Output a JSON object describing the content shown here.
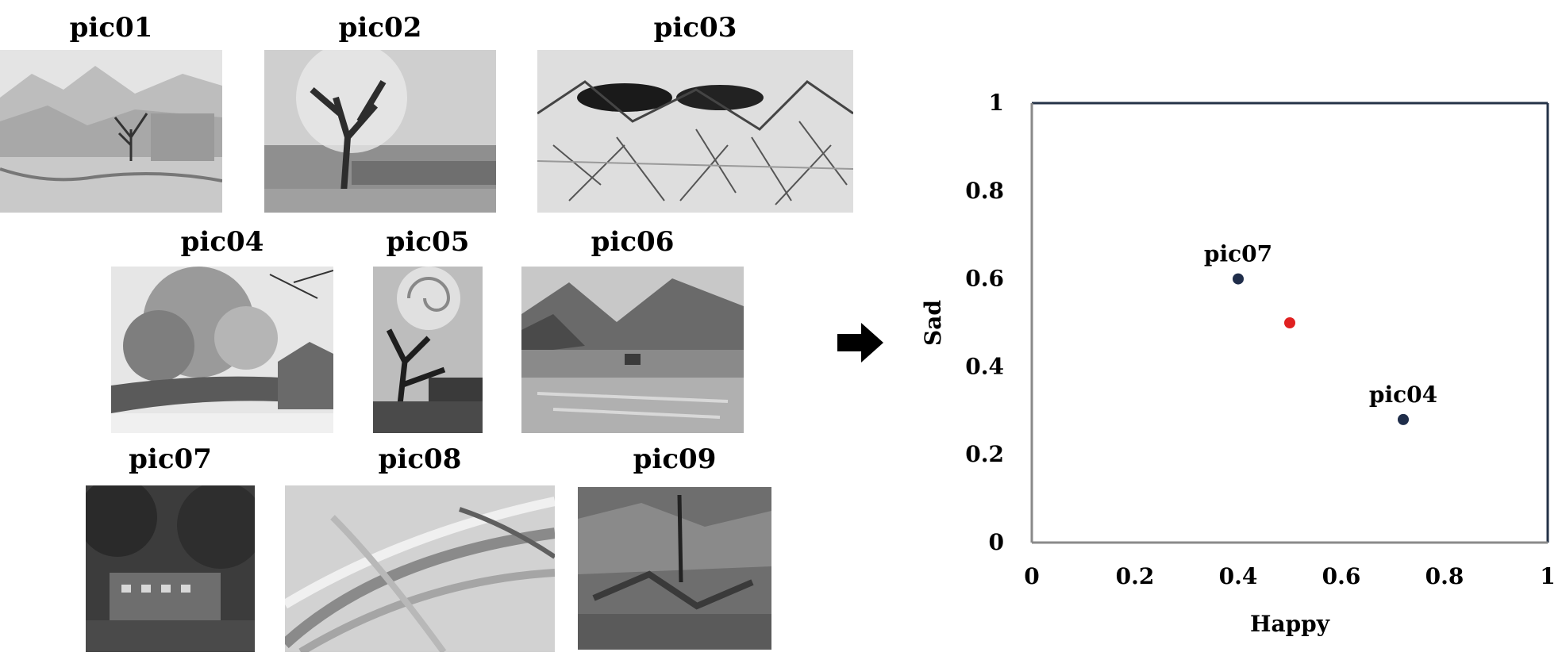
{
  "pictures": [
    {
      "label": "pic01",
      "style": "watercolor-landscape"
    },
    {
      "label": "pic02",
      "style": "tree"
    },
    {
      "label": "pic03",
      "style": "sketchy-mountains"
    },
    {
      "label": "pic04",
      "style": "garden-wall"
    },
    {
      "label": "pic05",
      "style": "swirl-tree"
    },
    {
      "label": "pic06",
      "style": "mountain-lake"
    },
    {
      "label": "pic07",
      "style": "dark-house"
    },
    {
      "label": "pic08",
      "style": "brush-strokes"
    },
    {
      "label": "pic09",
      "style": "abstract-dark"
    }
  ],
  "arrow_icon": "right-arrow-icon",
  "chart_data": {
    "type": "scatter",
    "xlabel": "Happy",
    "ylabel": "Sad",
    "xlim": [
      0,
      1
    ],
    "ylim": [
      0,
      1
    ],
    "xticks": [
      "0",
      "0.2",
      "0.4",
      "0.6",
      "0.8",
      "1"
    ],
    "yticks": [
      "0",
      "0.2",
      "0.4",
      "0.6",
      "0.8",
      "1"
    ],
    "points": [
      {
        "label": "pic07",
        "x": 0.4,
        "y": 0.6,
        "color": "#1f2d4a"
      },
      {
        "label": "",
        "x": 0.5,
        "y": 0.5,
        "color": "#e02020"
      },
      {
        "label": "pic04",
        "x": 0.72,
        "y": 0.28,
        "color": "#1f2d4a"
      }
    ],
    "frame_color": "#243247",
    "axis_color": "#8a8a8a"
  }
}
